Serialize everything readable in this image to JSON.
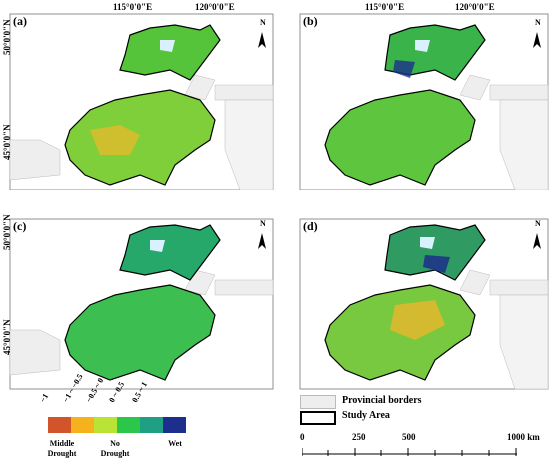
{
  "panels": [
    {
      "label": "(a)",
      "lon1": "115°0'0\"E",
      "lon2": "120°0'0\"E",
      "lat1": "50°0'0\"N",
      "lat2": "45°0'0\"N",
      "north": "N"
    },
    {
      "label": "(b)",
      "lon1": "115°0'0\"E",
      "lon2": "120°0'0\"E",
      "north": "N"
    },
    {
      "label": "(c)",
      "lat1": "50°0'0\"N",
      "lat2": "45°0'0\"N",
      "north": "N"
    },
    {
      "label": "(d)",
      "north": "N"
    }
  ],
  "legend": {
    "classes": [
      {
        "label": "−1",
        "color": "#d2542a"
      },
      {
        "label": "−1 ~ −0.5",
        "color": "#f5b21c"
      },
      {
        "label": "−0.5 ~ 0",
        "color": "#b9e436"
      },
      {
        "label": "0 ~ 0.5",
        "color": "#2bc64a"
      },
      {
        "label": "0.5 ~ 1",
        "color": "#1f9f84"
      },
      {
        "label": "",
        "color": "#1c2f8c"
      }
    ],
    "bottom": [
      "Middle Drought",
      "No Drought",
      "Wet"
    ],
    "provincial": "Provincial borders",
    "study_area": "Study Area"
  },
  "scale": {
    "ticks": [
      "0",
      "250",
      "500",
      "1000 km"
    ],
    "extra": "0"
  }
}
